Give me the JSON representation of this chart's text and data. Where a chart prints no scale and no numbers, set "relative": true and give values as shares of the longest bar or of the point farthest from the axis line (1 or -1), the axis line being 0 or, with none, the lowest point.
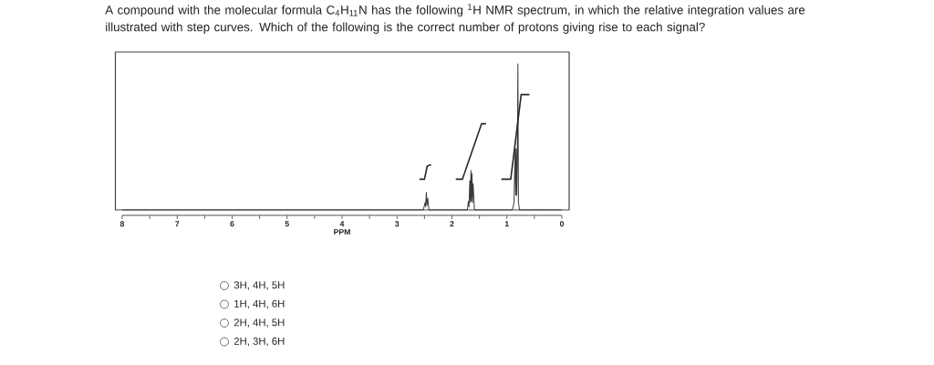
{
  "chart_data": {
    "type": "line",
    "relative": true,
    "title": "A compound with the molecular formula C$_{4}$H$_{11}$N has the following $^{1}$H NMR spectrum, in which the relative integration values are illustrated with step curves. Which of the following is the correct number of protons giving rise to each signal?",
    "xlabel": "PPM",
    "xlim": [
      8,
      0
    ],
    "xticks": [
      8,
      {
        "value": 7.5,
        "label": null
      },
      7,
      {
        "value": 6.5,
        "label": null
      },
      6,
      {
        "value": 5.5,
        "label": null
      },
      5,
      {
        "value": 4.5,
        "label": null
      },
      4,
      {
        "value": 3.5,
        "label": null
      },
      3,
      {
        "value": 2.5,
        "label": null
      },
      2,
      {
        "value": 1.5,
        "label": null
      },
      1,
      {
        "value": 0.5,
        "label": null
      },
      0
    ],
    "marker": "none",
    "line_style": "solid",
    "series": [
      {
        "color": "#3a3a3a",
        "x": [
          8,
          2.52,
          2.49,
          2.48,
          2.465,
          2.455,
          2.44,
          2.42,
          1.72,
          1.7,
          1.69,
          1.675,
          1.665,
          1.655,
          1.645,
          1.635,
          1.625,
          1.615,
          1.59,
          0.9,
          0.87,
          0.85,
          0.84,
          0.83,
          0.82,
          0.81,
          0.8,
          0.79,
          0.77,
          0
        ],
        "values": [
          0,
          0,
          0.05,
          0.02,
          0.12,
          0.03,
          0.08,
          0,
          0,
          0.06,
          0.02,
          0.2,
          0.05,
          0.27,
          0.06,
          0.25,
          0.05,
          0.18,
          0,
          0,
          0.05,
          0.42,
          0.1,
          0.42,
          0.1,
          0.35,
          1,
          0.05,
          0,
          0
        ]
      },
      {
        "color": "#262626",
        "x": [
          2.59,
          2.5,
          2.45,
          2.38,
          2.0,
          1.93,
          1.81,
          1.46,
          1.38,
          1.2,
          1.1,
          0.93,
          0.74,
          0.59
        ],
        "values": [
          0.21,
          0.21,
          0.3,
          0.31,
          null,
          0.21,
          0.21,
          0.59,
          0.59,
          null,
          0.21,
          0.21,
          0.79,
          0.79
        ]
      }
    ],
    "annotations": [
      "3H, 4H, 5H",
      "1H, 4H, 6H",
      "2H, 4H, 5H",
      "2H, 3H, 6H"
    ]
  }
}
